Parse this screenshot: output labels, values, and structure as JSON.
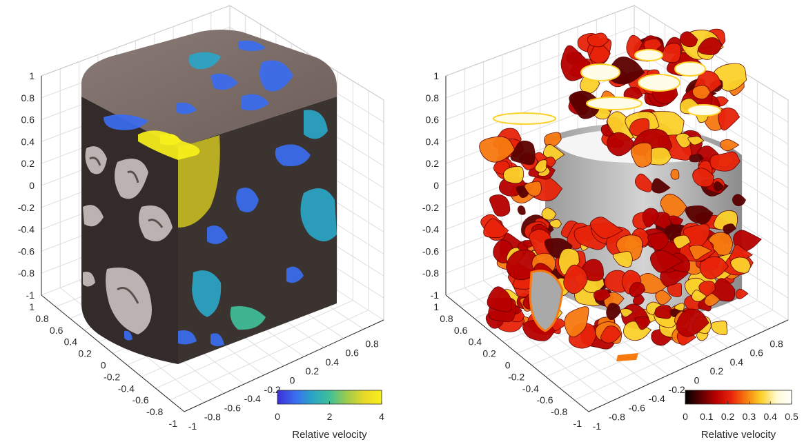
{
  "chart_data": [
    {
      "type": "surface3d",
      "name": "left-panel",
      "z_ticks": [
        "-1",
        "-0.8",
        "-0.6",
        "-0.4",
        "-0.2",
        "0",
        "0.2",
        "0.4",
        "0.6",
        "0.8",
        "1"
      ],
      "y_ticks": [
        "1",
        "0.8",
        "0.6",
        "0.4",
        "0.2",
        "0",
        "-0.2",
        "-0.4",
        "-0.6",
        "-0.8",
        "-1"
      ],
      "x_ticks": [
        "-1",
        "-0.8",
        "-0.6",
        "-0.4",
        "-0.2",
        "0",
        "0.2",
        "0.4",
        "0.6",
        "0.8"
      ],
      "zlim": [
        -1,
        1
      ],
      "ylim": [
        -1,
        1
      ],
      "xlim": [
        -1,
        1
      ],
      "colorbar": {
        "label": "Relative velocity",
        "ticks": [
          "0",
          "2",
          "4"
        ],
        "range": [
          0,
          4
        ],
        "colormap": [
          "#3b2fd6",
          "#3a6cf0",
          "#2aa5c7",
          "#3fbf9a",
          "#9ccb4a",
          "#e9d82a",
          "#f7f01a"
        ]
      },
      "colors": {
        "body": "#3b3330",
        "top": "#7a6a66",
        "highlight": "#c9c2c0"
      }
    },
    {
      "type": "surface3d",
      "name": "right-panel",
      "z_ticks": [
        "-1",
        "-0.8",
        "-0.6",
        "-0.4",
        "-0.2",
        "0",
        "0.2",
        "0.4",
        "0.6",
        "0.8",
        "1"
      ],
      "y_ticks": [
        "1",
        "0.8",
        "0.6",
        "0.4",
        "0.2",
        "0",
        "-0.2",
        "-0.4",
        "-0.6",
        "-0.8",
        "-1"
      ],
      "x_ticks": [
        "-1",
        "-0.8",
        "-0.6",
        "-0.4",
        "-0.2",
        "0",
        "0.2",
        "0.4",
        "0.6",
        "0.8"
      ],
      "zlim": [
        -1,
        1
      ],
      "ylim": [
        -1,
        1
      ],
      "xlim": [
        -1,
        1
      ],
      "colorbar": {
        "label": "Relative velocity",
        "ticks": [
          "0",
          "0.1",
          "0.2",
          "0.3",
          "0.4",
          "0.5"
        ],
        "range": [
          0,
          0.5
        ],
        "colormap": [
          "#000000",
          "#5a0000",
          "#b80000",
          "#e8230a",
          "#f77a10",
          "#fbd12a",
          "#fff9d0",
          "#ffffff"
        ]
      },
      "colors": {
        "core": "#b8b8b8",
        "surface": "#d91a14"
      }
    }
  ]
}
